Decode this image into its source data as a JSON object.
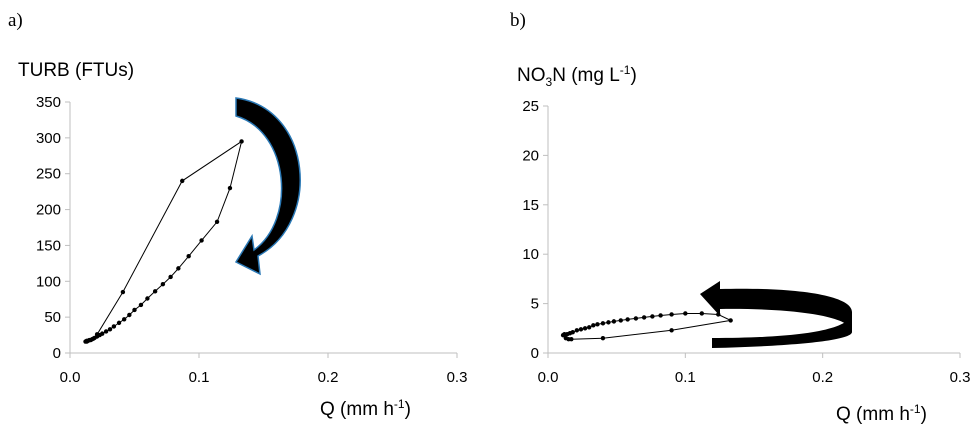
{
  "chart_data": [
    {
      "type": "scatter",
      "panel_label": "a)",
      "title": "",
      "ylabel": "TURB (FTUs)",
      "xlabel": "Q (mm h",
      "xlabel_sup": "-1",
      "xlabel_end": ")",
      "xlim": [
        0,
        0.3
      ],
      "ylim": [
        0,
        350
      ],
      "xticks": [
        "0.0",
        "0.1",
        "0.2",
        "0.3"
      ],
      "xtick_values": [
        0,
        0.1,
        0.2,
        0.3
      ],
      "yticks": [
        "0",
        "50",
        "100",
        "150",
        "200",
        "250",
        "300",
        "350"
      ],
      "ytick_values": [
        0,
        50,
        100,
        150,
        200,
        250,
        300,
        350
      ],
      "grid": false,
      "hysteresis_direction": "clockwise",
      "series": [
        {
          "x": [
            0.012,
            0.013,
            0.014,
            0.016,
            0.018,
            0.021,
            0.041,
            0.087,
            0.133,
            0.124,
            0.114,
            0.102,
            0.092,
            0.084,
            0.078,
            0.072,
            0.066,
            0.06,
            0.055,
            0.05,
            0.046,
            0.042,
            0.038,
            0.034,
            0.031,
            0.028,
            0.025,
            0.023,
            0.021,
            0.019,
            0.017,
            0.015,
            0.013
          ],
          "y": [
            16,
            16,
            17,
            18,
            20,
            26,
            85,
            240,
            295,
            230,
            183,
            157,
            135,
            118,
            106,
            96,
            86,
            76,
            67,
            60,
            53,
            47,
            42,
            37,
            33,
            30,
            27,
            25,
            23,
            21,
            19,
            18,
            17
          ]
        }
      ]
    },
    {
      "type": "scatter",
      "panel_label": "b)",
      "title": "",
      "ylabel": "NO",
      "ylabel_sub": "3",
      "ylabel_mid": "N (mg L",
      "ylabel_sup": "-1",
      "ylabel_end": ")",
      "xlabel": "Q (mm h",
      "xlabel_sup": "-1",
      "xlabel_end": ")",
      "xlim": [
        0,
        0.3
      ],
      "ylim": [
        0,
        25
      ],
      "xticks": [
        "0.0",
        "0.1",
        "0.2",
        "0.3"
      ],
      "xtick_values": [
        0,
        0.1,
        0.2,
        0.3
      ],
      "yticks": [
        "0",
        "5",
        "10",
        "15",
        "20",
        "25"
      ],
      "ytick_values": [
        0,
        5,
        10,
        15,
        20,
        25
      ],
      "grid": false,
      "hysteresis_direction": "anticlockwise",
      "series": [
        {
          "x": [
            0.012,
            0.013,
            0.015,
            0.017,
            0.04,
            0.09,
            0.133,
            0.124,
            0.112,
            0.1,
            0.09,
            0.082,
            0.076,
            0.07,
            0.064,
            0.058,
            0.053,
            0.048,
            0.044,
            0.04,
            0.036,
            0.033,
            0.03,
            0.027,
            0.024,
            0.021,
            0.018,
            0.016,
            0.014,
            0.012,
            0.011
          ],
          "y": [
            1.8,
            1.5,
            1.4,
            1.4,
            1.5,
            2.3,
            3.3,
            3.9,
            4.0,
            4.0,
            3.9,
            3.8,
            3.7,
            3.6,
            3.5,
            3.4,
            3.3,
            3.2,
            3.1,
            3.0,
            2.9,
            2.8,
            2.6,
            2.5,
            2.4,
            2.3,
            2.1,
            2.0,
            1.9,
            1.9,
            1.8
          ]
        }
      ]
    }
  ]
}
